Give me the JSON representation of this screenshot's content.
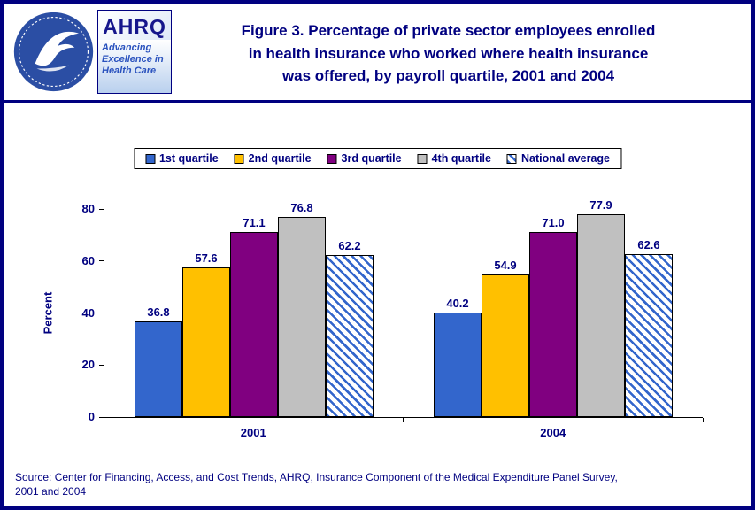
{
  "page": {
    "title_lines": [
      "Figure 3.  Percentage of private sector employees enrolled",
      "in health insurance who worked where health insurance",
      "was offered, by payroll quartile, 2001 and 2004"
    ],
    "source_lines": [
      "Source: Center for Financing, Access, and Cost Trends, AHRQ, Insurance Component of the Medical Expenditure Panel Survey,",
      "2001 and 2004"
    ]
  },
  "logos": {
    "hhs_name": "hhs-seal",
    "ahrq_acronym": "AHRQ",
    "ahrq_tagline_lines": [
      "Advancing",
      "Excellence in",
      "Health Care"
    ]
  },
  "chart_data": {
    "type": "bar",
    "title": "Percentage of private sector employees enrolled in health insurance who worked where health insurance was offered, by payroll quartile, 2001 and 2004",
    "categories": [
      "2001",
      "2004"
    ],
    "series": [
      {
        "name": "1st quartile",
        "values": [
          36.8,
          40.2
        ],
        "color": "#3366CC",
        "pattern": "solid"
      },
      {
        "name": "2nd quartile",
        "values": [
          57.6,
          54.9
        ],
        "color": "#FFC000",
        "pattern": "solid"
      },
      {
        "name": "3rd quartile",
        "values": [
          71.1,
          71.0
        ],
        "color": "#800080",
        "pattern": "solid"
      },
      {
        "name": "4th quartile",
        "values": [
          76.8,
          77.9
        ],
        "color": "#C0C0C0",
        "pattern": "solid"
      },
      {
        "name": "National average",
        "values": [
          62.2,
          62.6
        ],
        "color": "#3366CC",
        "pattern": "diagonal-hatch"
      }
    ],
    "xlabel": "",
    "ylabel": "Percent",
    "ylim": [
      0,
      80
    ],
    "yticks": [
      0,
      20,
      40,
      60,
      80
    ],
    "grid": false,
    "legend_position": "top",
    "value_labels": true,
    "value_label_decimals": 1
  },
  "colors": {
    "navy": "#000080",
    "axis": "#000000",
    "border": "#000080"
  }
}
